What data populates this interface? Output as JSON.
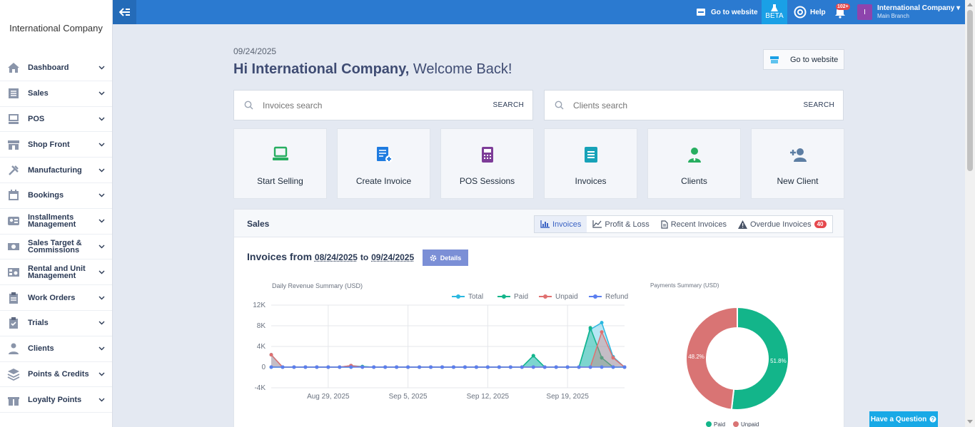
{
  "brand": {
    "name": "International Company"
  },
  "sidebar": {
    "items": [
      {
        "label": "Dashboard",
        "icon": "home-icon"
      },
      {
        "label": "Sales",
        "icon": "list-icon"
      },
      {
        "label": "POS",
        "icon": "monitor-icon"
      },
      {
        "label": "Shop Front",
        "icon": "store-icon"
      },
      {
        "label": "Manufacturing",
        "icon": "tools-icon"
      },
      {
        "label": "Bookings",
        "icon": "calendar-icon"
      },
      {
        "label": "Installments Management",
        "icon": "id-card-icon"
      },
      {
        "label": "Sales Target & Commissions",
        "icon": "money-icon"
      },
      {
        "label": "Rental and Unit Management",
        "icon": "building-icon"
      },
      {
        "label": "Work Orders",
        "icon": "clipboard-icon"
      },
      {
        "label": "Trials",
        "icon": "clipboard-check-icon"
      },
      {
        "label": "Clients",
        "icon": "user-icon"
      },
      {
        "label": "Points & Credits",
        "icon": "layers-icon"
      },
      {
        "label": "Loyalty Points",
        "icon": "gift-icon"
      }
    ]
  },
  "topbar": {
    "go_to_website": "Go to website",
    "beta": "BETA",
    "help": "Help",
    "notifications_count": "102+",
    "avatar_letter": "I",
    "company": "International Company",
    "branch": "Main Branch"
  },
  "main": {
    "date": "09/24/2025",
    "greeting": "Hi International Company,",
    "greeting_rest": "Welcome Back!",
    "go_to_website": "Go to website",
    "invoice_search": {
      "placeholder": "Invoices search",
      "button": "SEARCH"
    },
    "client_search": {
      "placeholder": "Clients search",
      "button": "SEARCH"
    },
    "tiles": [
      {
        "label": "Start Selling",
        "icon": "laptop-icon",
        "color": "#27ae60"
      },
      {
        "label": "Create Invoice",
        "icon": "invoice-add-icon",
        "color": "#1e7be0"
      },
      {
        "label": "POS Sessions",
        "icon": "calculator-icon",
        "color": "#7d3c98"
      },
      {
        "label": "Invoices",
        "icon": "document-icon",
        "color": "#17a2b8"
      },
      {
        "label": "Clients",
        "icon": "client-icon",
        "color": "#27ae60"
      },
      {
        "label": "New Client",
        "icon": "user-plus-icon",
        "color": "#5d7ea3"
      }
    ]
  },
  "sales": {
    "title": "Sales",
    "tabs": [
      {
        "label": "Invoices",
        "active": true
      },
      {
        "label": "Profit & Loss",
        "active": false
      },
      {
        "label": "Recent Invoices",
        "active": false
      },
      {
        "label": "Overdue Invoices",
        "active": false,
        "badge": "40"
      }
    ],
    "invoices_from": "Invoices from",
    "from_date": "08/24/2025",
    "to": "to",
    "to_date": "09/24/2025",
    "details": "Details"
  },
  "chart_data": [
    {
      "type": "area",
      "title": "Daily Revenue Summary (USD)",
      "ylim": [
        -4000,
        12000
      ],
      "yticks": [
        "12K",
        "8K",
        "4K",
        "0",
        "-4K"
      ],
      "xticks": [
        "Aug 29, 2025",
        "Sep 5, 2025",
        "Sep 12, 2025",
        "Sep 19, 2025"
      ],
      "x": [
        "Aug 24",
        "Aug 25",
        "Aug 26",
        "Aug 27",
        "Aug 28",
        "Aug 29",
        "Aug 30",
        "Aug 31",
        "Sep 1",
        "Sep 2",
        "Sep 3",
        "Sep 4",
        "Sep 5",
        "Sep 6",
        "Sep 7",
        "Sep 8",
        "Sep 9",
        "Sep 10",
        "Sep 11",
        "Sep 12",
        "Sep 13",
        "Sep 14",
        "Sep 15",
        "Sep 16",
        "Sep 17",
        "Sep 18",
        "Sep 19",
        "Sep 20",
        "Sep 21",
        "Sep 22",
        "Sep 23",
        "Sep 24"
      ],
      "series": [
        {
          "name": "Total",
          "color": "#2bb8e0",
          "values": [
            2400,
            0,
            0,
            0,
            0,
            0,
            0,
            300,
            100,
            0,
            0,
            0,
            0,
            0,
            0,
            0,
            0,
            0,
            0,
            0,
            0,
            0,
            0,
            2200,
            0,
            0,
            0,
            0,
            7300,
            8600,
            2000,
            0
          ]
        },
        {
          "name": "Paid",
          "color": "#13b58a",
          "values": [
            0,
            0,
            0,
            0,
            0,
            0,
            0,
            0,
            100,
            0,
            0,
            0,
            0,
            0,
            0,
            0,
            0,
            0,
            0,
            0,
            0,
            0,
            0,
            2200,
            0,
            0,
            0,
            0,
            7600,
            1800,
            0,
            0
          ]
        },
        {
          "name": "Unpaid",
          "color": "#e07070",
          "values": [
            2400,
            0,
            0,
            0,
            0,
            0,
            0,
            300,
            0,
            0,
            0,
            0,
            0,
            0,
            0,
            0,
            0,
            0,
            0,
            0,
            0,
            0,
            0,
            0,
            0,
            0,
            0,
            0,
            0,
            6800,
            1800,
            0
          ]
        },
        {
          "name": "Refund",
          "color": "#5b7ff0",
          "values": [
            0,
            0,
            0,
            0,
            0,
            0,
            0,
            0,
            0,
            0,
            0,
            0,
            0,
            0,
            0,
            0,
            0,
            0,
            0,
            0,
            0,
            0,
            0,
            0,
            0,
            0,
            0,
            0,
            0,
            0,
            0,
            0
          ]
        }
      ],
      "legend": "top-right",
      "grid": true
    },
    {
      "type": "pie",
      "title": "Payments Summary (USD)",
      "slices": [
        {
          "name": "Paid",
          "value": 51.8,
          "label": "51.8%",
          "color": "#13b58a"
        },
        {
          "name": "Unpaid",
          "value": 48.2,
          "label": "48.2%",
          "color": "#d97474"
        }
      ],
      "legend": "bottom"
    }
  ],
  "help_button": "Have a Question"
}
